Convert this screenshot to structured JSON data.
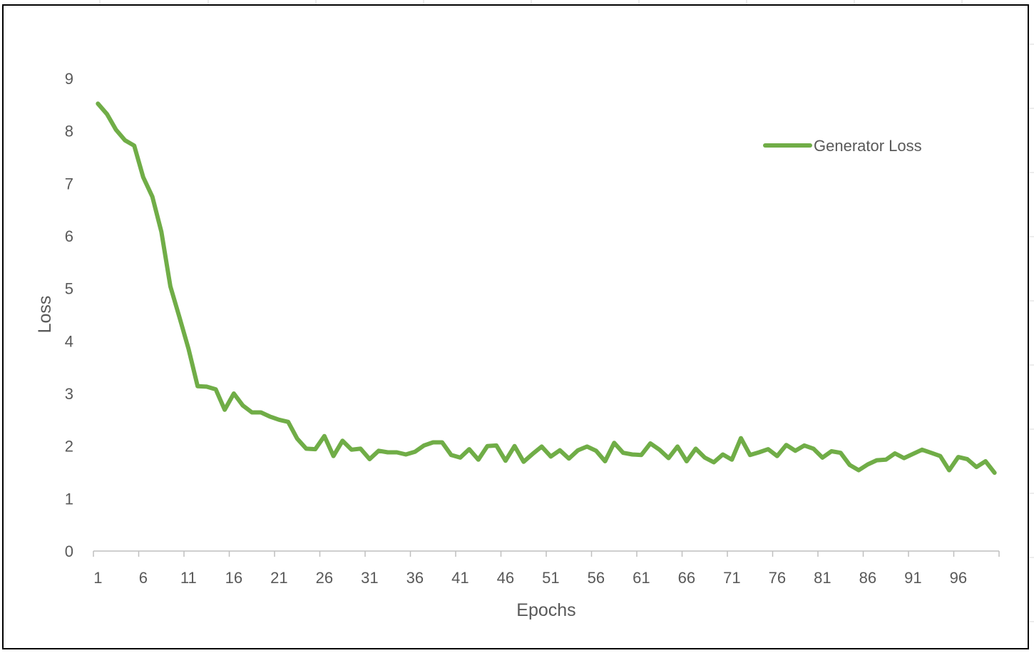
{
  "chart_data": {
    "type": "line",
    "title": "",
    "xlabel": "Epochs",
    "ylabel": "Loss",
    "ylim": [
      0,
      9
    ],
    "yticks": [
      "0",
      "1",
      "2",
      "3",
      "4",
      "5",
      "6",
      "7",
      "8",
      "9"
    ],
    "xtick_labels": [
      "1",
      "6",
      "11",
      "16",
      "21",
      "26",
      "31",
      "36",
      "41",
      "46",
      "51",
      "56",
      "61",
      "66",
      "71",
      "76",
      "81",
      "86",
      "91",
      "96"
    ],
    "grid": false,
    "legend_position": "top-right",
    "series": [
      {
        "name": "Generator Loss",
        "color": "#70ad47",
        "x": [
          1,
          2,
          3,
          4,
          5,
          6,
          7,
          8,
          9,
          10,
          11,
          12,
          13,
          14,
          15,
          16,
          17,
          18,
          19,
          20,
          21,
          22,
          23,
          24,
          25,
          26,
          27,
          28,
          29,
          30,
          31,
          32,
          33,
          34,
          35,
          36,
          37,
          38,
          39,
          40,
          41,
          42,
          43,
          44,
          45,
          46,
          47,
          48,
          49,
          50,
          51,
          52,
          53,
          54,
          55,
          56,
          57,
          58,
          59,
          60,
          61,
          62,
          63,
          64,
          65,
          66,
          67,
          68,
          69,
          70,
          71,
          72,
          73,
          74,
          75,
          76,
          77,
          78,
          79,
          80,
          81,
          82,
          83,
          84,
          85,
          86,
          87,
          88,
          89,
          90,
          91,
          92,
          93,
          94,
          95,
          96,
          97,
          98,
          99,
          100,
          101
        ],
        "values": [
          8.52,
          8.32,
          8.02,
          7.82,
          7.72,
          7.12,
          6.75,
          6.08,
          5.04,
          4.45,
          3.85,
          3.14,
          3.13,
          3.08,
          2.69,
          3.0,
          2.77,
          2.64,
          2.64,
          2.56,
          2.5,
          2.46,
          2.14,
          1.95,
          1.94,
          2.19,
          1.81,
          2.1,
          1.93,
          1.95,
          1.75,
          1.91,
          1.88,
          1.88,
          1.84,
          1.89,
          2.01,
          2.07,
          2.07,
          1.83,
          1.78,
          1.94,
          1.74,
          2.0,
          2.01,
          1.72,
          2.0,
          1.7,
          1.85,
          1.99,
          1.8,
          1.92,
          1.76,
          1.92,
          1.99,
          1.91,
          1.71,
          2.06,
          1.87,
          1.84,
          1.83,
          2.05,
          1.93,
          1.77,
          1.99,
          1.71,
          1.95,
          1.78,
          1.69,
          1.84,
          1.74,
          2.15,
          1.83,
          1.88,
          1.94,
          1.81,
          2.02,
          1.91,
          2.01,
          1.95,
          1.78,
          1.9,
          1.87,
          1.64,
          1.54,
          1.65,
          1.73,
          1.74,
          1.86,
          1.77,
          1.85,
          1.93,
          1.87,
          1.81,
          1.54,
          1.79,
          1.75,
          1.6,
          1.71,
          1.49,
          null
        ]
      }
    ]
  }
}
